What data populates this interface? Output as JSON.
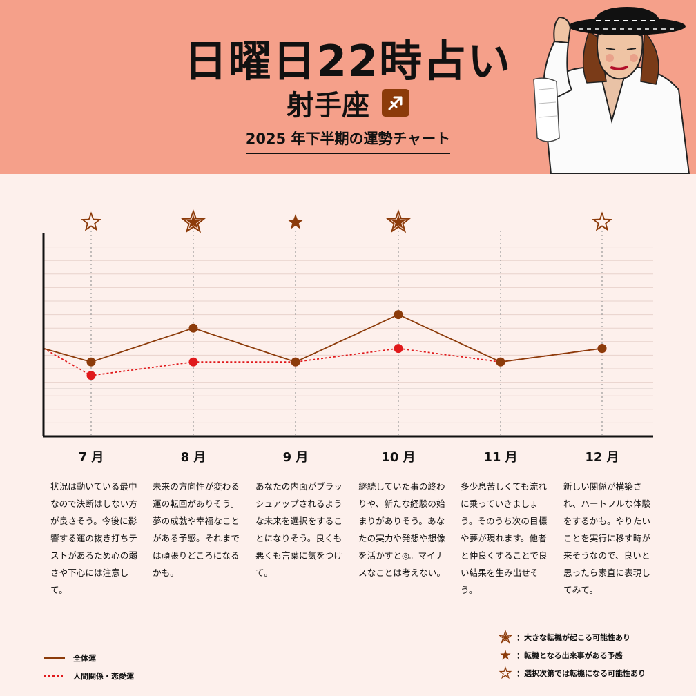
{
  "header": {
    "title": "日曜日22時占い",
    "sign": "射手座",
    "subtitle": "2025 年下半期の運勢チャート"
  },
  "colors": {
    "header_bg": "#f5a08a",
    "body_bg": "#fdf0ec",
    "overall_line": "#8c3b0a",
    "relationship_line": "#e0191b",
    "star": "#8c3b0a"
  },
  "chart_data": {
    "type": "line",
    "categories": [
      "7 月",
      "8 月",
      "9 月",
      "10 月",
      "11 月",
      "12 月"
    ],
    "series": [
      {
        "name": "全体運",
        "values": [
          51,
          56,
          51,
          58,
          51,
          53
        ],
        "start": 53,
        "style": "solid",
        "color": "#8c3b0a"
      },
      {
        "name": "人間関係・恋愛運",
        "values": [
          49,
          51,
          51,
          53,
          51,
          53
        ],
        "start": 53,
        "style": "dotted",
        "color": "#e0191b"
      }
    ],
    "stars": [
      "outline",
      "outlined-filled",
      "filled",
      "outlined-filled",
      "none",
      "outline"
    ],
    "star_extra_position": "12 月",
    "ylim": [
      40,
      70
    ],
    "baseline": 47,
    "grid": true
  },
  "descriptions": [
    "状況は動いている最中なので決断はしない方が良さそう。今後に影響する運の抜き打ちテストがあるため心の弱さや下心には注意して。",
    "未来の方向性が変わる運の転回がありそう。夢の成就や幸福なことがある予感。それまでは頑張りどころになるかも。",
    "あなたの内面がブラッシュアップされるような未来を選択をすることになりそう。良くも悪くも言葉に気をつけて。",
    "継続していた事の終わりや、新たな経験の始まりがありそう。あなたの実力や発想や想像を活かすと◎。マイナスなことは考えない。",
    "多少息苦しくても流れに乗っていきましょう。そのうち次の目標や夢が現れます。他者と仲良くすることで良い結果を生み出せそう。",
    "新しい関係が構築され、ハートフルな体験をするかも。やりたいことを実行に移す時が来そうなので、良いと思ったら素直に表現してみて。"
  ],
  "legend": {
    "overall": "全体運",
    "relationship": "人間関係・恋愛運",
    "star_big": "：大きな転機が起こる可能性あり",
    "star_filled": "：転機となる出来事がある予感",
    "star_outline": "：選択次第では転機になる可能性あり"
  }
}
